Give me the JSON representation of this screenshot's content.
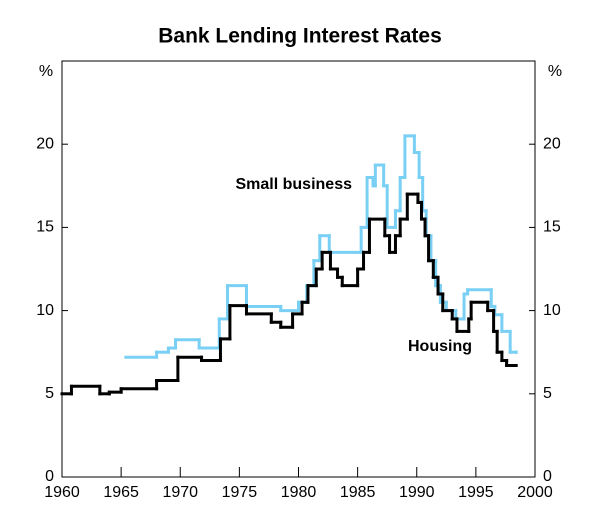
{
  "chart_data": {
    "type": "line",
    "title": "Bank Lending Interest Rates",
    "y_unit": "%",
    "step": "post",
    "xlim": [
      1960,
      2000
    ],
    "xticks": [
      1960,
      1965,
      1970,
      1975,
      1980,
      1985,
      1990,
      1995,
      2000
    ],
    "ylim": [
      0,
      25
    ],
    "yticks": [
      0,
      5,
      10,
      15,
      20
    ],
    "series": [
      {
        "name": "Small business",
        "color": "#7ad0f4",
        "x": [
          1965.4,
          1968,
          1969,
          1969.6,
          1971.6,
          1973.3,
          1974,
          1975.6,
          1978.5,
          1980,
          1980.7,
          1981.3,
          1981.8,
          1982.6,
          1985.3,
          1985.8,
          1986.3,
          1986.5,
          1987.2,
          1987.5,
          1988.2,
          1988.6,
          1989,
          1989.8,
          1990.2,
          1990.5,
          1990.8,
          1991.2,
          1991.6,
          1992,
          1992.5,
          1993.3,
          1994,
          1994.3,
          1996.3,
          1996.6,
          1997.2,
          1997.9,
          1998.4
        ],
        "values": [
          7.2,
          7.5,
          7.75,
          8.25,
          7.75,
          9.5,
          11.5,
          10.25,
          10,
          10.5,
          11.5,
          13,
          14.5,
          13.5,
          15,
          18,
          17.5,
          18.75,
          17.5,
          15,
          16,
          18,
          20.5,
          19.5,
          18,
          16,
          14.5,
          13,
          11.5,
          10.5,
          10,
          9.5,
          11,
          11.25,
          10.25,
          9.75,
          8.75,
          7.5,
          7.5
        ]
      },
      {
        "name": "Housing",
        "color": "#000000",
        "x": [
          1960,
          1960.8,
          1963.2,
          1964,
          1965,
          1968,
          1969.8,
          1971.8,
          1973.4,
          1974.2,
          1975.6,
          1977.7,
          1978.5,
          1979.5,
          1980.3,
          1980.8,
          1981.5,
          1982,
          1982.7,
          1983.3,
          1983.7,
          1985,
          1985.5,
          1986,
          1987.3,
          1987.7,
          1988.2,
          1988.6,
          1989.2,
          1990.1,
          1990.4,
          1990.7,
          1991,
          1991.4,
          1991.8,
          1992.2,
          1993,
          1993.4,
          1994.4,
          1994.6,
          1996,
          1996.5,
          1996.8,
          1997.2,
          1997.6,
          1998.4
        ],
        "values": [
          5,
          5.45,
          5,
          5.1,
          5.3,
          5.8,
          7.2,
          7,
          8.3,
          10.3,
          9.8,
          9.3,
          9,
          9.8,
          10.5,
          11.5,
          12.5,
          13.5,
          12.5,
          12,
          11.5,
          12.5,
          13.5,
          15.5,
          14.5,
          13.5,
          14.5,
          15.5,
          17,
          16.5,
          15.5,
          14.5,
          13,
          12,
          11,
          10,
          9.5,
          8.75,
          9.5,
          10.5,
          10,
          8.75,
          7.5,
          7,
          6.7,
          6.7
        ]
      }
    ]
  }
}
